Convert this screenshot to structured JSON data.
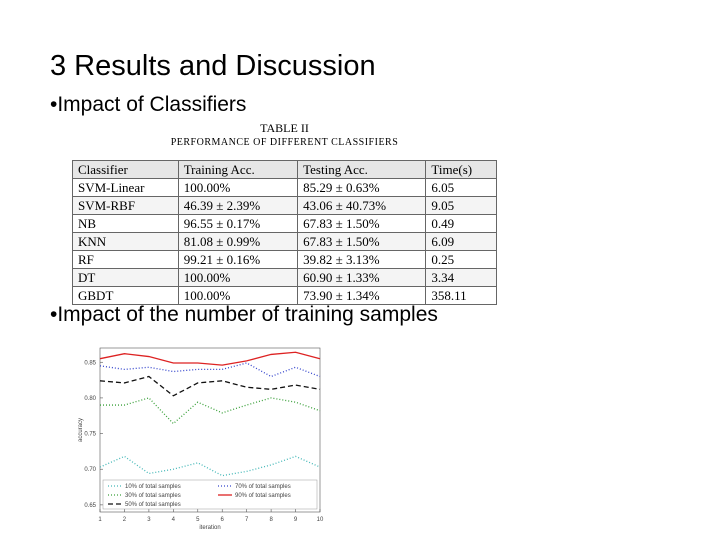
{
  "slide": {
    "title": "3 Results and Discussion",
    "bullets": [
      "•Impact of Classifiers",
      "•Impact of the number of training samples"
    ]
  },
  "table": {
    "caption": "TABLE II",
    "subcaption": "PERFORMANCE OF DIFFERENT CLASSIFIERS",
    "header": [
      "Classifier",
      "Training Acc.",
      "Testing Acc.",
      "Time(s)"
    ],
    "rows": [
      [
        "SVM-Linear",
        "100.00%",
        "85.29 ± 0.63%",
        "6.05"
      ],
      [
        "SVM-RBF",
        "46.39 ± 2.39%",
        "43.06 ± 40.73%",
        "9.05"
      ],
      [
        "NB",
        "96.55 ± 0.17%",
        "67.83 ± 1.50%",
        "0.49"
      ],
      [
        "KNN",
        "81.08 ± 0.99%",
        "67.83 ± 1.50%",
        "6.09"
      ],
      [
        "RF",
        "99.21 ± 0.16%",
        "39.82 ± 3.13%",
        "0.25"
      ],
      [
        "DT",
        "100.00%",
        "60.90 ± 1.33%",
        "3.34"
      ],
      [
        "GBDT",
        "100.00%",
        "73.90 ± 1.34%",
        "358.11"
      ]
    ]
  },
  "chart_data": {
    "type": "line",
    "x_label": "iteration",
    "y_label": "accuracy",
    "x": [
      1,
      2,
      3,
      4,
      5,
      6,
      7,
      8,
      9,
      10
    ],
    "xlim": [
      1,
      10
    ],
    "xticks": [
      1,
      2,
      3,
      4,
      5,
      6,
      7,
      8,
      9,
      10
    ],
    "ylim": [
      0.64,
      0.87
    ],
    "yticks": [
      0.65,
      {
        "value": 0.7,
        "label": "0.70"
      },
      0.75,
      {
        "value": 0.8,
        "label": "0.80"
      },
      0.85
    ],
    "series": [
      {
        "name": "10% of total samples",
        "color": "#44b8b8",
        "dash": "1,2",
        "values": [
          0.703,
          0.718,
          0.694,
          0.7,
          0.709,
          0.691,
          0.697,
          0.706,
          0.718,
          0.703
        ]
      },
      {
        "name": "30% of total samples",
        "color": "#3aa03a",
        "dash": "1,2",
        "values": [
          0.79,
          0.79,
          0.8,
          0.764,
          0.794,
          0.779,
          0.79,
          0.8,
          0.794,
          0.782
        ]
      },
      {
        "name": "50% of total samples",
        "color": "#111111",
        "dash": "5,3",
        "values": [
          0.824,
          0.821,
          0.83,
          0.803,
          0.821,
          0.824,
          0.815,
          0.812,
          0.818,
          0.812
        ]
      },
      {
        "name": "70% of total samples",
        "color": "#3344cc",
        "dash": "1,2",
        "values": [
          0.845,
          0.84,
          0.843,
          0.837,
          0.84,
          0.84,
          0.849,
          0.83,
          0.843,
          0.83
        ]
      },
      {
        "name": "90% of total samples",
        "color": "#dd2222",
        "dash": "",
        "values": [
          0.855,
          0.862,
          0.858,
          0.849,
          0.849,
          0.846,
          0.852,
          0.861,
          0.864,
          0.855
        ]
      }
    ]
  }
}
